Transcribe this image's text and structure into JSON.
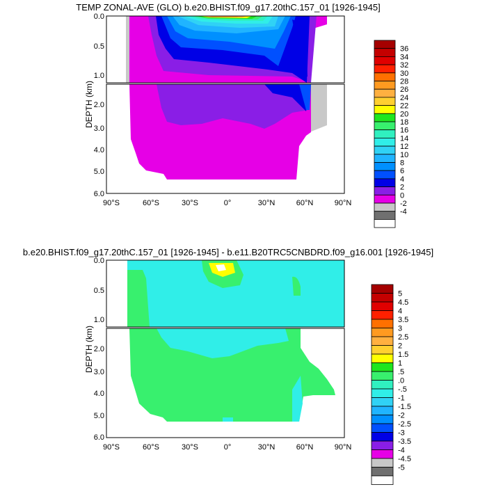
{
  "chart_data": [
    {
      "type": "heatmap",
      "title": "TEMP ZONAL-AVE (GLO) b.e20.BHIST.f09_g17.20thC.157_01 [1926-1945]",
      "xlabel": "",
      "ylabel": "DEPTH (km)",
      "x_ticks": [
        "90°S",
        "60°S",
        "30°S",
        "0°",
        "30°N",
        "60°N",
        "90°N"
      ],
      "x_values": [
        -90,
        -60,
        -30,
        0,
        30,
        60,
        90
      ],
      "y_ticks_upper": [
        "0.0",
        "0.5",
        "1.0"
      ],
      "y_ticks_lower": [
        "2.0",
        "3.0",
        "4.0",
        "5.0",
        "6.0"
      ],
      "colorbar": {
        "labels": [
          "36",
          "34",
          "32",
          "30",
          "28",
          "26",
          "24",
          "22",
          "20",
          "18",
          "16",
          "14",
          "12",
          "10",
          "8",
          "6",
          "4",
          "2",
          "0",
          "-2",
          "-4"
        ],
        "colors": [
          "#a50000",
          "#c40000",
          "#e00000",
          "#ff2000",
          "#ff7000",
          "#ff9a20",
          "#ffb040",
          "#ffd030",
          "#ffff00",
          "#1ee61e",
          "#38f06e",
          "#30f0c0",
          "#30eee8",
          "#30d2f5",
          "#20b4ff",
          "#0090ff",
          "#0050ff",
          "#0000e6",
          "#8a1ee6",
          "#e600e6",
          "#c8c8c8",
          "#707070",
          "#ffffff"
        ]
      },
      "field_summary": "Surface temperatures reach ~28-30 near the equator; deep ocean is about 0-2; bottom polar waters reach -2 near the north pole"
    },
    {
      "type": "heatmap",
      "title": "b.e20.BHIST.f09_g17.20thC.157_01 [1926-1945] - b.e11.B20TRC5CNBDRD.f09_g16.001 [1926-1945]",
      "xlabel": "",
      "ylabel": "DEPTH (km)",
      "x_ticks": [
        "90°S",
        "60°S",
        "30°S",
        "0°",
        "30°N",
        "60°N",
        "90°N"
      ],
      "x_values": [
        -90,
        -60,
        -30,
        0,
        30,
        60,
        90
      ],
      "y_ticks_upper": [
        "0.0",
        "0.5",
        "1.0"
      ],
      "y_ticks_lower": [
        "2.0",
        "3.0",
        "4.0",
        "5.0",
        "6.0"
      ],
      "colorbar": {
        "labels": [
          "5",
          "4.5",
          "4",
          "3.5",
          "3",
          "2.5",
          "2",
          "1.5",
          "1",
          ".5",
          ".0",
          "-.5",
          "-1",
          "-1.5",
          "-2",
          "-2.5",
          "-3",
          "-3.5",
          "-4",
          "-4.5",
          "-5"
        ],
        "colors": [
          "#a50000",
          "#c40000",
          "#e00000",
          "#ff2000",
          "#ff7000",
          "#ff9a20",
          "#ffb040",
          "#ffd030",
          "#ffff00",
          "#1ee61e",
          "#38f06e",
          "#30f0c0",
          "#30eee8",
          "#30d2f5",
          "#20b4ff",
          "#0090ff",
          "#0050ff",
          "#0000e6",
          "#8a1ee6",
          "#e600e6",
          "#c8c8c8",
          "#707070",
          "#ffffff"
        ]
      },
      "field_summary": "Differences mostly between -0.5 and 0.5; small positive patch (1 to 1.5) near the equator surface"
    }
  ]
}
